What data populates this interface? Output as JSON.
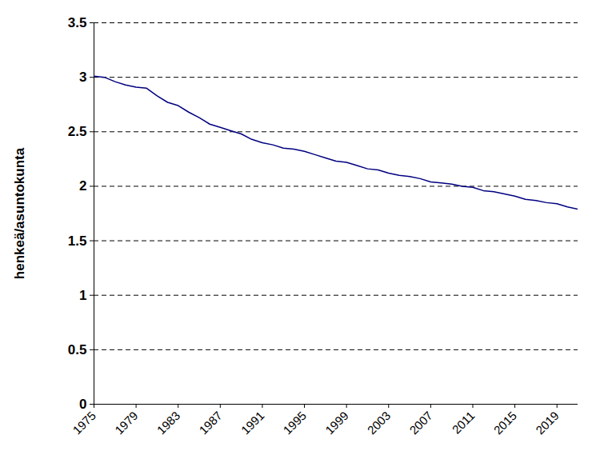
{
  "chart_data": {
    "type": "line",
    "y_label": "henkeä/asuntokunta",
    "x": [
      1975,
      1976,
      1977,
      1978,
      1979,
      1980,
      1981,
      1982,
      1983,
      1984,
      1985,
      1986,
      1987,
      1988,
      1989,
      1990,
      1991,
      1992,
      1993,
      1994,
      1995,
      1996,
      1997,
      1998,
      1999,
      2000,
      2001,
      2002,
      2003,
      2004,
      2005,
      2006,
      2007,
      2008,
      2009,
      2010,
      2011,
      2012,
      2013,
      2014,
      2015,
      2016,
      2017,
      2018,
      2019,
      2020,
      2021
    ],
    "values": [
      3.01,
      3.0,
      2.96,
      2.93,
      2.91,
      2.9,
      2.83,
      2.77,
      2.74,
      2.68,
      2.63,
      2.57,
      2.54,
      2.51,
      2.48,
      2.43,
      2.4,
      2.38,
      2.35,
      2.34,
      2.32,
      2.29,
      2.26,
      2.23,
      2.22,
      2.19,
      2.16,
      2.15,
      2.12,
      2.1,
      2.09,
      2.07,
      2.04,
      2.03,
      2.02,
      2.0,
      1.99,
      1.96,
      1.95,
      1.93,
      1.91,
      1.88,
      1.87,
      1.85,
      1.84,
      1.81,
      1.79
    ],
    "color": "#000080",
    "xlim": [
      1975,
      2021
    ],
    "xticks": [
      1975,
      1979,
      1983,
      1987,
      1991,
      1995,
      1999,
      2003,
      2007,
      2011,
      2015,
      2019
    ],
    "ylim": [
      0,
      3.5
    ],
    "yticks": [
      0,
      0.5,
      1,
      1.5,
      2,
      2.5,
      3,
      3.5
    ],
    "grid": true
  }
}
